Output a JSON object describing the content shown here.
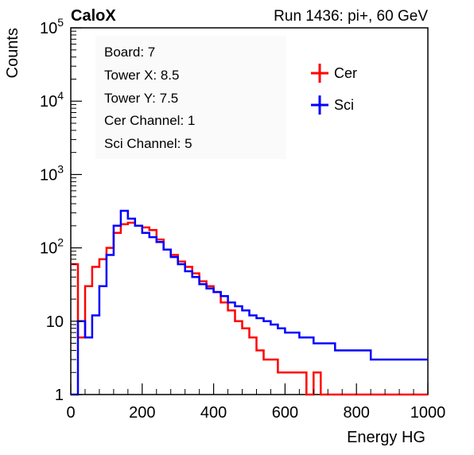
{
  "header": {
    "brand": "CaloX",
    "run_label": "Run 1436: pi+, 60 GeV"
  },
  "info_box": {
    "lines": [
      "Board: 7",
      "Tower X: 8.5",
      "Tower Y: 7.5",
      "Cer Channel: 1",
      "Sci Channel: 5"
    ]
  },
  "colors": {
    "cer": "#ff0000",
    "sci": "#0000ff",
    "axis": "#000000"
  },
  "chart_data": {
    "type": "line",
    "style": "step histogram",
    "title": "",
    "xlabel": "Energy HG",
    "ylabel": "Counts",
    "xlim": [
      0,
      1000
    ],
    "ylim": [
      1,
      100000
    ],
    "yscale": "log",
    "x_ticks": [
      0,
      200,
      400,
      600,
      800,
      1000
    ],
    "x_tick_labels": [
      "0",
      "200",
      "400",
      "600",
      "800",
      "1000"
    ],
    "y_ticks": [
      1,
      10,
      100,
      1000,
      10000,
      100000
    ],
    "y_tick_labels": [
      "1",
      "10",
      "10^2",
      "10^3",
      "10^4",
      "10^5"
    ],
    "legend": {
      "position": "top-right"
    },
    "x": [
      0,
      20,
      40,
      60,
      80,
      100,
      120,
      140,
      160,
      180,
      200,
      220,
      240,
      260,
      280,
      300,
      320,
      340,
      360,
      380,
      400,
      420,
      440,
      460,
      480,
      500,
      520,
      540,
      560,
      580,
      600,
      620,
      640,
      660,
      680,
      700,
      720,
      740,
      760,
      780,
      800,
      820,
      840,
      860,
      880,
      900,
      920,
      940,
      960,
      980,
      1000
    ],
    "series": [
      {
        "name": "Cer",
        "color": "#ff0000",
        "values": [
          60,
          6,
          30,
          55,
          70,
          100,
          160,
          210,
          220,
          200,
          190,
          175,
          130,
          95,
          80,
          65,
          55,
          45,
          35,
          30,
          25,
          18,
          14,
          10,
          8,
          6,
          4,
          3,
          3,
          2,
          2,
          2,
          2,
          1,
          2,
          1,
          1,
          1,
          1,
          1,
          1,
          1,
          1,
          1,
          1,
          1,
          1,
          1,
          1,
          1,
          1
        ]
      },
      {
        "name": "Sci",
        "color": "#0000ff",
        "values": [
          1,
          10,
          6,
          12,
          30,
          80,
          200,
          320,
          250,
          200,
          160,
          140,
          120,
          95,
          75,
          60,
          48,
          40,
          32,
          28,
          25,
          22,
          18,
          16,
          14,
          12,
          11,
          10,
          9,
          8,
          7,
          7,
          6,
          6,
          5,
          5,
          5,
          4,
          4,
          4,
          4,
          4,
          3,
          3,
          3,
          3,
          3,
          3,
          3,
          3,
          3
        ]
      }
    ]
  }
}
